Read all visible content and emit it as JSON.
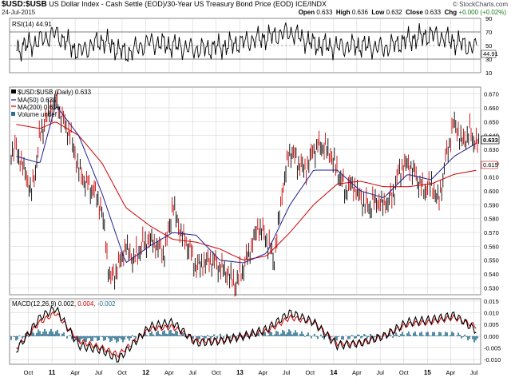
{
  "header": {
    "symbol": "$USD:$USB",
    "description": "US Dollar Index - Cash Settle (EOD)/30-Year US Treasury Bond Price (EOD)  ICE/INDX",
    "date": "24-Jul-2015",
    "watermark": "© StockCharts.com",
    "open_label": "Open",
    "open": "0.633",
    "high_label": "High",
    "high": "0.636",
    "low_label": "Low",
    "low": "0.632",
    "close_label": "Close",
    "close": "0.633",
    "chg_label": "Chg",
    "chg": "+0.000 (+0.02%)"
  },
  "rsi_panel": {
    "legend": "RSI(14) 44.91",
    "current_value_label": "44.91",
    "y_ticks": [
      "90",
      "70",
      "50",
      "30",
      "10"
    ]
  },
  "price_panel": {
    "legend_symbol": "$USD:$USB (Daily) 0.633",
    "legend_ma50": "MA(50) 0.635",
    "legend_ma200": "MA(200) 0.615",
    "legend_volume": "Volume undef",
    "current_price_label": "0.633",
    "ma200_label": "0.615",
    "y_ticks": [
      "0.670",
      "0.660",
      "0.650",
      "0.640",
      "0.630",
      "0.620",
      "0.610",
      "0.600",
      "0.590",
      "0.580",
      "0.570",
      "0.560",
      "0.550",
      "0.540",
      "0.530"
    ]
  },
  "macd_panel": {
    "legend_name": "MACD(12,26,9)",
    "legend_macd": "0.002,",
    "legend_signal": "0.004,",
    "legend_hist": "-0.002",
    "y_ticks": [
      "0.015",
      "0.010",
      "0.005",
      "0.000",
      "-0.005",
      "-0.010"
    ]
  },
  "x_axis_labels": [
    "Oct",
    "11",
    "Apr",
    "Jul",
    "Oct",
    "12",
    "Apr",
    "Jul",
    "Oct",
    "13",
    "Apr",
    "Jul",
    "Oct",
    "14",
    "Apr",
    "Jul",
    "Oct",
    "15",
    "Apr",
    "Jul"
  ],
  "colors": {
    "price_up": "#000000",
    "price_down": "#cc0000",
    "ma50": "#1f1f8f",
    "ma200": "#cc0000",
    "macd_line": "#000000",
    "signal_line": "#cc0000",
    "histogram": "#2a6f8f",
    "grid": "#cccccc"
  },
  "chart_data": [
    {
      "type": "line",
      "title": "RSI(14)",
      "ylim": [
        10,
        90
      ],
      "series": [
        {
          "name": "RSI(14)",
          "x": [
            "2010-08",
            "2010-10",
            "2011-01",
            "2011-04",
            "2011-07",
            "2011-10",
            "2012-01",
            "2012-04",
            "2012-07",
            "2012-10",
            "2013-01",
            "2013-04",
            "2013-07",
            "2013-10",
            "2014-01",
            "2014-04",
            "2014-07",
            "2014-10",
            "2015-01",
            "2015-04",
            "2015-07"
          ],
          "values": [
            45,
            52,
            68,
            40,
            58,
            38,
            55,
            50,
            44,
            48,
            55,
            62,
            70,
            52,
            48,
            50,
            46,
            58,
            66,
            56,
            45
          ]
        }
      ],
      "reference_lines": [
        70,
        50,
        30
      ]
    },
    {
      "type": "line",
      "title": "$USD:$USB (Daily) 0.633",
      "ylim": [
        0.525,
        0.675
      ],
      "grid": true,
      "series": [
        {
          "name": "$USD:$USB (Daily) 0.633",
          "x": [
            "2010-08",
            "2010-09",
            "2010-10",
            "2010-11",
            "2010-12",
            "2011-01",
            "2011-02",
            "2011-03",
            "2011-04",
            "2011-05",
            "2011-06",
            "2011-07",
            "2011-08",
            "2011-09",
            "2011-10",
            "2011-11",
            "2011-12",
            "2012-01",
            "2012-02",
            "2012-03",
            "2012-04",
            "2012-05",
            "2012-06",
            "2012-07",
            "2012-08",
            "2012-09",
            "2012-10",
            "2012-11",
            "2012-12",
            "2013-01",
            "2013-02",
            "2013-03",
            "2013-04",
            "2013-05",
            "2013-06",
            "2013-07",
            "2013-08",
            "2013-09",
            "2013-10",
            "2013-11",
            "2013-12",
            "2014-01",
            "2014-02",
            "2014-03",
            "2014-04",
            "2014-05",
            "2014-06",
            "2014-07",
            "2014-08",
            "2014-09",
            "2014-10",
            "2014-11",
            "2014-12",
            "2015-01",
            "2015-02",
            "2015-03",
            "2015-04",
            "2015-05",
            "2015-06",
            "2015-07"
          ],
          "values": [
            0.63,
            0.615,
            0.598,
            0.64,
            0.655,
            0.665,
            0.65,
            0.64,
            0.615,
            0.605,
            0.6,
            0.585,
            0.535,
            0.545,
            0.56,
            0.55,
            0.56,
            0.565,
            0.56,
            0.555,
            0.59,
            0.57,
            0.56,
            0.545,
            0.548,
            0.55,
            0.545,
            0.54,
            0.532,
            0.545,
            0.56,
            0.575,
            0.565,
            0.55,
            0.6,
            0.63,
            0.62,
            0.615,
            0.63,
            0.633,
            0.628,
            0.615,
            0.6,
            0.605,
            0.595,
            0.588,
            0.593,
            0.59,
            0.595,
            0.615,
            0.62,
            0.612,
            0.6,
            0.605,
            0.592,
            0.625,
            0.65,
            0.635,
            0.642,
            0.633
          ]
        },
        {
          "name": "MA(50) 0.635",
          "x": [
            "2010-08",
            "2010-11",
            "2011-01",
            "2011-04",
            "2011-07",
            "2011-10",
            "2012-01",
            "2012-04",
            "2012-07",
            "2012-10",
            "2013-01",
            "2013-04",
            "2013-07",
            "2013-10",
            "2014-01",
            "2014-04",
            "2014-07",
            "2014-10",
            "2015-01",
            "2015-04",
            "2015-07"
          ],
          "values": [
            0.625,
            0.62,
            0.662,
            0.64,
            0.598,
            0.548,
            0.56,
            0.57,
            0.568,
            0.55,
            0.548,
            0.555,
            0.59,
            0.615,
            0.615,
            0.6,
            0.595,
            0.612,
            0.608,
            0.625,
            0.635
          ]
        },
        {
          "name": "MA(200) 0.615",
          "x": [
            "2010-08",
            "2010-11",
            "2011-01",
            "2011-04",
            "2011-07",
            "2011-10",
            "2012-01",
            "2012-04",
            "2012-07",
            "2012-10",
            "2013-01",
            "2013-04",
            "2013-07",
            "2013-10",
            "2014-01",
            "2014-04",
            "2014-07",
            "2014-10",
            "2015-01",
            "2015-04",
            "2015-07"
          ],
          "values": [
            0.648,
            0.645,
            0.65,
            0.64,
            0.62,
            0.588,
            0.575,
            0.565,
            0.563,
            0.558,
            0.55,
            0.553,
            0.57,
            0.59,
            0.605,
            0.607,
            0.603,
            0.603,
            0.605,
            0.612,
            0.615
          ]
        }
      ]
    },
    {
      "type": "line",
      "title": "MACD(12,26,9)",
      "ylim": [
        -0.012,
        0.016
      ],
      "series": [
        {
          "name": "MACD",
          "x": [
            "2010-08",
            "2010-11",
            "2011-01",
            "2011-04",
            "2011-07",
            "2011-09",
            "2012-01",
            "2012-04",
            "2012-07",
            "2012-10",
            "2013-01",
            "2013-04",
            "2013-07",
            "2013-10",
            "2014-01",
            "2014-04",
            "2014-07",
            "2014-10",
            "2015-01",
            "2015-04",
            "2015-07"
          ],
          "values": [
            -0.006,
            0.008,
            0.012,
            -0.004,
            -0.006,
            -0.01,
            0.004,
            0.006,
            -0.003,
            -0.002,
            0.0,
            0.003,
            0.01,
            0.006,
            -0.004,
            -0.003,
            0.0,
            0.006,
            0.007,
            0.009,
            0.002
          ]
        },
        {
          "name": "Signal",
          "x": [
            "2010-08",
            "2010-11",
            "2011-01",
            "2011-04",
            "2011-07",
            "2011-09",
            "2012-01",
            "2012-04",
            "2012-07",
            "2012-10",
            "2013-01",
            "2013-04",
            "2013-07",
            "2013-10",
            "2014-01",
            "2014-04",
            "2014-07",
            "2014-10",
            "2015-01",
            "2015-04",
            "2015-07"
          ],
          "values": [
            -0.005,
            0.006,
            0.01,
            -0.002,
            -0.005,
            -0.008,
            0.003,
            0.004,
            -0.002,
            -0.002,
            0.0,
            0.002,
            0.008,
            0.006,
            -0.003,
            -0.003,
            0.0,
            0.005,
            0.006,
            0.008,
            0.004
          ]
        }
      ]
    }
  ]
}
